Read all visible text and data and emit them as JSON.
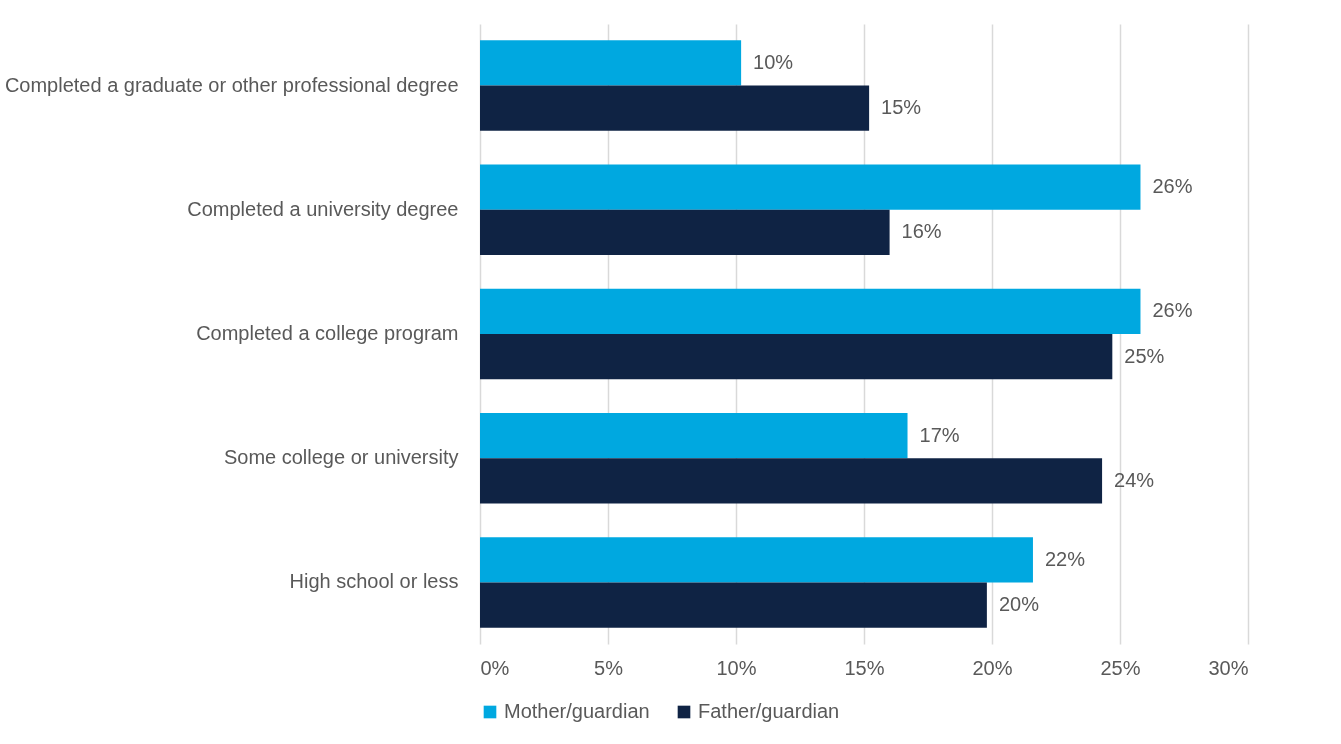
{
  "chart_data": {
    "type": "bar",
    "orientation": "horizontal",
    "categories": [
      "Completed a graduate or other professional degree",
      "Completed a university degree",
      "Completed a college program",
      "Some college or university",
      "High school or less"
    ],
    "series": [
      {
        "name": "Mother/guardian",
        "color": "#00a8e0",
        "values": [
          10.2,
          25.8,
          25.8,
          16.7,
          21.6
        ],
        "value_labels": [
          "10%",
          "26%",
          "26%",
          "17%",
          "22%"
        ]
      },
      {
        "name": "Father/guardian",
        "color": "#0f2344",
        "values": [
          15.2,
          16.0,
          24.7,
          24.3,
          19.8
        ],
        "value_labels": [
          "15%",
          "16%",
          "25%",
          "24%",
          "20%"
        ]
      }
    ],
    "xlim": [
      0,
      30
    ],
    "xticks": [
      {
        "value": 0,
        "label": "0%"
      },
      {
        "value": 5,
        "label": "5%"
      },
      {
        "value": 10,
        "label": "10%"
      },
      {
        "value": 15,
        "label": "15%"
      },
      {
        "value": 20,
        "label": "20%"
      },
      {
        "value": 25,
        "label": "25%"
      },
      {
        "value": 30,
        "label": "30%"
      }
    ],
    "grid": "x",
    "legend": "bottom"
  }
}
